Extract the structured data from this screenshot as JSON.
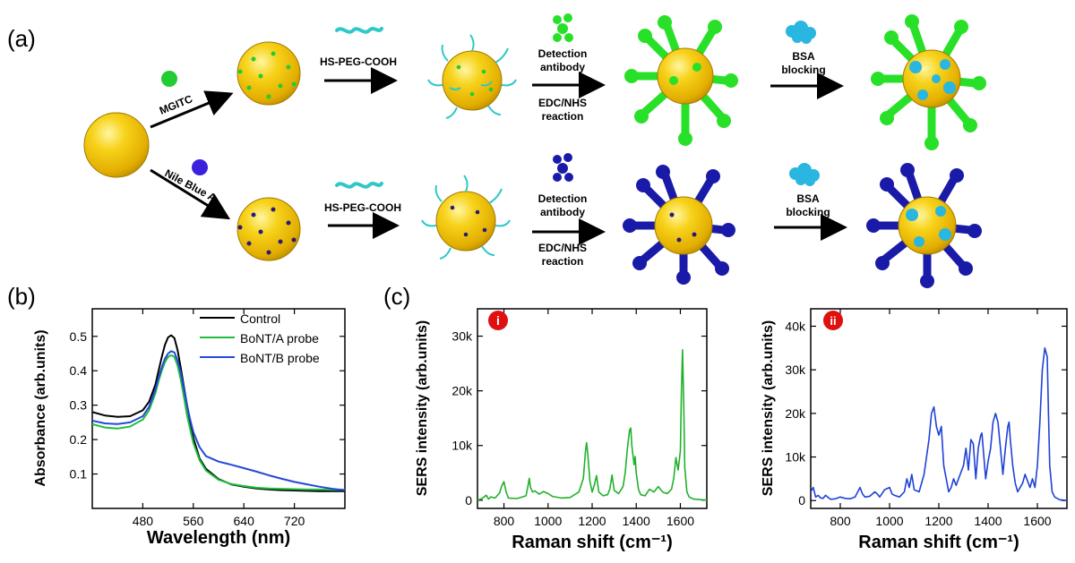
{
  "panel_labels": {
    "a": "(a)",
    "b": "(b)",
    "c": "(c)"
  },
  "scheme": {
    "dye1": "MGITC",
    "dye2": "Nile Blue A",
    "peg": "HS-PEG-COOH",
    "detection_line1": "Detection",
    "detection_line2": "antibody",
    "edc_line1": "EDC/NHS",
    "edc_line2": "reaction",
    "bsa_line1": "BSA",
    "bsa_line2": "blocking",
    "colors": {
      "gold": "#f2c200",
      "gold_dark": "#b08a00",
      "green_dye": "#22cc33",
      "blue_dye": "#3a22dd",
      "peg": "#2fc8c8",
      "antibody_green": "#28e028",
      "antibody_blue": "#1a1aa8",
      "bsa": "#29b6e0"
    }
  },
  "chart_data": [
    {
      "id": "b",
      "type": "line",
      "xlabel": "Wavelength (nm)",
      "ylabel": "Absorbance (arb.units)",
      "xlim": [
        400,
        800
      ],
      "ylim": [
        0,
        0.58
      ],
      "xticks": [
        480,
        560,
        640,
        720
      ],
      "yticks": [
        0.1,
        0.2,
        0.3,
        0.4,
        0.5
      ],
      "legend_position": "top-right",
      "series": [
        {
          "name": "Control",
          "color": "#000000",
          "x": [
            400,
            420,
            440,
            460,
            480,
            490,
            500,
            505,
            510,
            515,
            520,
            525,
            530,
            535,
            540,
            545,
            550,
            555,
            560,
            570,
            580,
            600,
            620,
            640,
            660,
            680,
            700,
            720,
            740,
            760,
            780,
            800
          ],
          "y": [
            0.28,
            0.27,
            0.266,
            0.268,
            0.285,
            0.31,
            0.36,
            0.4,
            0.44,
            0.475,
            0.497,
            0.503,
            0.495,
            0.46,
            0.41,
            0.355,
            0.3,
            0.25,
            0.205,
            0.145,
            0.115,
            0.085,
            0.07,
            0.063,
            0.058,
            0.055,
            0.053,
            0.052,
            0.051,
            0.05,
            0.05,
            0.05
          ]
        },
        {
          "name": "BoNT/A probe",
          "color": "#1fbf3f",
          "x": [
            400,
            420,
            440,
            460,
            480,
            490,
            500,
            505,
            510,
            515,
            520,
            525,
            530,
            535,
            540,
            545,
            550,
            555,
            560,
            570,
            580,
            600,
            620,
            640,
            660,
            680,
            700,
            720,
            740,
            760,
            780,
            800
          ],
          "y": [
            0.245,
            0.235,
            0.232,
            0.238,
            0.258,
            0.285,
            0.335,
            0.37,
            0.4,
            0.425,
            0.44,
            0.445,
            0.44,
            0.415,
            0.375,
            0.325,
            0.27,
            0.23,
            0.19,
            0.14,
            0.11,
            0.083,
            0.071,
            0.065,
            0.06,
            0.058,
            0.057,
            0.056,
            0.055,
            0.055,
            0.054,
            0.054
          ]
        },
        {
          "name": "BoNT/B probe",
          "color": "#2448d8",
          "x": [
            400,
            420,
            440,
            460,
            480,
            490,
            500,
            505,
            510,
            515,
            520,
            525,
            530,
            535,
            540,
            545,
            550,
            555,
            560,
            570,
            580,
            600,
            620,
            640,
            660,
            680,
            700,
            720,
            740,
            760,
            780,
            800
          ],
          "y": [
            0.255,
            0.247,
            0.245,
            0.25,
            0.268,
            0.295,
            0.345,
            0.38,
            0.41,
            0.435,
            0.45,
            0.457,
            0.453,
            0.43,
            0.395,
            0.348,
            0.3,
            0.258,
            0.222,
            0.178,
            0.152,
            0.136,
            0.127,
            0.117,
            0.107,
            0.096,
            0.086,
            0.077,
            0.07,
            0.063,
            0.057,
            0.053
          ]
        }
      ]
    },
    {
      "id": "c-i",
      "type": "line",
      "badge": "i",
      "xlabel": "Raman shift (cm⁻¹)",
      "ylabel": "SERS intensity (arb.units)",
      "xlim": [
        680,
        1720
      ],
      "ylim": [
        -1500,
        35000
      ],
      "xticks": [
        800,
        1000,
        1200,
        1400,
        1600
      ],
      "yticks": [
        0,
        10000,
        20000,
        30000
      ],
      "ytick_labels": [
        "0",
        "10k",
        "20k",
        "30k"
      ],
      "series": [
        {
          "name": "",
          "color": "#22b02c",
          "x": [
            680,
            700,
            720,
            730,
            740,
            760,
            780,
            790,
            800,
            810,
            820,
            860,
            900,
            910,
            915,
            920,
            930,
            940,
            960,
            980,
            1000,
            1020,
            1060,
            1100,
            1140,
            1160,
            1170,
            1175,
            1180,
            1190,
            1200,
            1210,
            1220,
            1230,
            1250,
            1270,
            1280,
            1290,
            1300,
            1320,
            1340,
            1350,
            1360,
            1370,
            1375,
            1380,
            1390,
            1395,
            1400,
            1410,
            1420,
            1440,
            1460,
            1480,
            1500,
            1520,
            1540,
            1560,
            1570,
            1580,
            1590,
            1600,
            1605,
            1610,
            1615,
            1620,
            1630,
            1640,
            1660,
            1690,
            1720
          ],
          "y": [
            0,
            300,
            900,
            200,
            600,
            400,
            1300,
            2600,
            3400,
            1500,
            400,
            300,
            800,
            2800,
            4000,
            2400,
            1500,
            1700,
            1100,
            1600,
            1200,
            700,
            400,
            500,
            1500,
            4000,
            9000,
            10500,
            8500,
            3500,
            1500,
            2800,
            4500,
            1500,
            800,
            1000,
            2000,
            4600,
            1800,
            1200,
            2500,
            5000,
            9500,
            12800,
            13200,
            10000,
            6500,
            8000,
            5000,
            2000,
            1000,
            800,
            2000,
            1500,
            2500,
            1500,
            1200,
            2000,
            4000,
            7800,
            5500,
            9000,
            20000,
            27500,
            18000,
            6000,
            1500,
            600,
            200,
            100,
            0
          ]
        }
      ]
    },
    {
      "id": "c-ii",
      "type": "line",
      "badge": "ii",
      "xlabel": "Raman shift (cm⁻¹)",
      "ylabel": "SERS intensity (arb.units)",
      "xlim": [
        680,
        1720
      ],
      "ylim": [
        -1800,
        44000
      ],
      "xticks": [
        800,
        1000,
        1200,
        1400,
        1600
      ],
      "yticks": [
        0,
        10000,
        20000,
        30000,
        40000
      ],
      "ytick_labels": [
        "0",
        "10k",
        "20k",
        "30k",
        "40k"
      ],
      "series": [
        {
          "name": "",
          "color": "#1f42d6",
          "x": [
            680,
            690,
            700,
            710,
            720,
            730,
            740,
            760,
            780,
            800,
            820,
            840,
            860,
            880,
            890,
            900,
            920,
            940,
            950,
            960,
            980,
            1000,
            1010,
            1020,
            1040,
            1060,
            1070,
            1080,
            1090,
            1100,
            1120,
            1140,
            1160,
            1170,
            1180,
            1190,
            1200,
            1210,
            1220,
            1240,
            1250,
            1260,
            1270,
            1280,
            1300,
            1310,
            1320,
            1330,
            1340,
            1350,
            1360,
            1370,
            1375,
            1380,
            1390,
            1400,
            1410,
            1420,
            1430,
            1440,
            1450,
            1460,
            1470,
            1480,
            1485,
            1490,
            1500,
            1510,
            1520,
            1540,
            1550,
            1560,
            1570,
            1580,
            1590,
            1600,
            1610,
            1620,
            1630,
            1640,
            1645,
            1650,
            1660,
            1670,
            1690,
            1720
          ],
          "y": [
            2000,
            3000,
            800,
            1200,
            600,
            500,
            1200,
            300,
            400,
            800,
            500,
            400,
            800,
            3000,
            1500,
            800,
            1000,
            2000,
            1500,
            800,
            2500,
            3000,
            1500,
            1200,
            800,
            2000,
            5000,
            3000,
            6000,
            2500,
            2000,
            6000,
            14000,
            20000,
            21500,
            17000,
            15000,
            17000,
            8000,
            2000,
            3000,
            5000,
            3500,
            5000,
            8000,
            12000,
            7000,
            14000,
            13000,
            5000,
            12000,
            15000,
            15500,
            12000,
            5000,
            9000,
            12000,
            18000,
            20000,
            18000,
            12000,
            6000,
            12000,
            17000,
            18000,
            14000,
            8000,
            4000,
            2000,
            4000,
            6000,
            4500,
            3000,
            5000,
            3000,
            8000,
            18000,
            30000,
            35000,
            33000,
            20000,
            8000,
            2000,
            800,
            200,
            0
          ]
        }
      ]
    }
  ]
}
